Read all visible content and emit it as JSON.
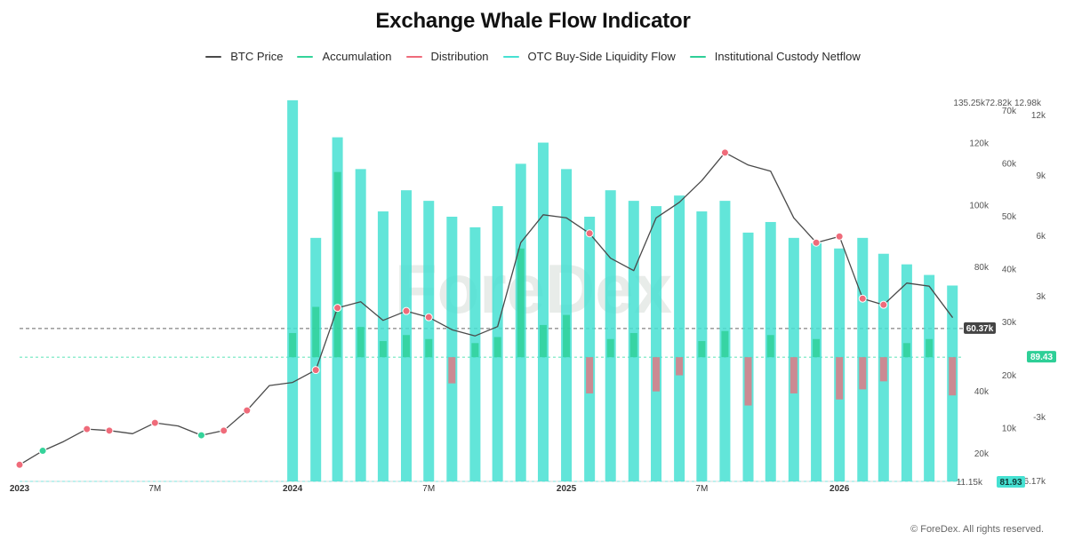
{
  "chart_data": {
    "type": "line",
    "title": "Exchange Whale Flow Indicator",
    "legend": [
      {
        "name": "BTC Price",
        "color": "#4a4a4a"
      },
      {
        "name": "Accumulation",
        "color": "#34d39a"
      },
      {
        "name": "Distribution",
        "color": "#ef6b7a"
      },
      {
        "name": "OTC Buy-Side Liquidity Flow",
        "color": "#46e1d2"
      },
      {
        "name": "Institutional Custody Netflow",
        "color": "#2ecf97"
      }
    ],
    "x": [
      "2023-01-01",
      "2023-02-01",
      "2023-03-01",
      "2023-04-01",
      "2023-05-01",
      "2023-06-01",
      "2023-07-01",
      "2023-08-01",
      "2023-09-01",
      "2023-10-01",
      "2023-11-01",
      "2023-12-01",
      "2024-01-01",
      "2024-02-01",
      "2024-03-01",
      "2024-04-01",
      "2024-05-01",
      "2024-06-01",
      "2024-07-01",
      "2024-08-01",
      "2024-09-01",
      "2024-10-01",
      "2024-11-01",
      "2024-12-01",
      "2025-01-01",
      "2025-02-01",
      "2025-03-01",
      "2025-04-01",
      "2025-05-01",
      "2025-06-01",
      "2025-07-01",
      "2025-08-01",
      "2025-09-01",
      "2025-10-01",
      "2025-11-01",
      "2025-12-01",
      "2026-01-01",
      "2026-02-01",
      "2026-03-01",
      "2026-04-01",
      "2026-05-01",
      "2026-06-01"
    ],
    "series": [
      {
        "name": "BTC Price",
        "values": [
          16500,
          21000,
          24000,
          28000,
          27500,
          26500,
          30000,
          29000,
          26000,
          27500,
          34000,
          42000,
          43000,
          47000,
          67000,
          69000,
          63000,
          66000,
          64000,
          60000,
          58000,
          61000,
          88000,
          97000,
          96000,
          91000,
          83000,
          79000,
          96000,
          101000,
          108000,
          117000,
          113000,
          111000,
          96000,
          88000,
          90000,
          70000,
          68000,
          75000,
          74000,
          64000
        ]
      },
      {
        "name": "Accumulation",
        "values": [
          0,
          1,
          0,
          0,
          0,
          0,
          0,
          0,
          1,
          0,
          0,
          0,
          0,
          0,
          0,
          0,
          0,
          0,
          0,
          0,
          0,
          0,
          0,
          0,
          0,
          0,
          0,
          0,
          0,
          0,
          0,
          0,
          0,
          0,
          0,
          0,
          0,
          0,
          0,
          0,
          0,
          0
        ]
      },
      {
        "name": "Distribution",
        "values": [
          1,
          0,
          0,
          1,
          1,
          0,
          1,
          0,
          0,
          1,
          1,
          0,
          0,
          1,
          1,
          0,
          0,
          1,
          1,
          0,
          0,
          0,
          0,
          0,
          0,
          1,
          0,
          0,
          0,
          0,
          0,
          1,
          0,
          0,
          0,
          1,
          1,
          1,
          1,
          0,
          0,
          0
        ]
      },
      {
        "name": "OTC Buy-Side Liquidity Flow",
        "values": [
          null,
          null,
          null,
          null,
          null,
          null,
          null,
          null,
          null,
          null,
          null,
          null,
          72000,
          46000,
          65000,
          59000,
          51000,
          55000,
          53000,
          50000,
          48000,
          52000,
          60000,
          64000,
          59000,
          50000,
          55000,
          53000,
          52000,
          54000,
          51000,
          53000,
          47000,
          49000,
          46000,
          45000,
          44000,
          46000,
          43000,
          41000,
          39000,
          37000
        ]
      },
      {
        "name": "Institutional Custody Netflow",
        "values": [
          null,
          null,
          null,
          null,
          null,
          null,
          null,
          null,
          null,
          null,
          null,
          null,
          1200,
          2500,
          9200,
          1500,
          800,
          1100,
          900,
          -1300,
          700,
          1000,
          5400,
          1600,
          2100,
          -1800,
          900,
          1200,
          -1700,
          -900,
          800,
          1300,
          -2400,
          1100,
          -1800,
          900,
          -2100,
          -1600,
          -1200,
          700,
          900,
          -1900
        ]
      }
    ],
    "axes": {
      "x_ticks": [
        {
          "date": "2023-01-01",
          "label": "2023"
        },
        {
          "date": "2023-07-01",
          "label": "7M"
        },
        {
          "date": "2024-01-01",
          "label": "2024"
        },
        {
          "date": "2024-07-01",
          "label": "7M"
        },
        {
          "date": "2025-01-01",
          "label": "2025"
        },
        {
          "date": "2025-07-01",
          "label": "7M"
        },
        {
          "date": "2026-01-01",
          "label": "2026"
        }
      ],
      "price_ticks": [
        {
          "value": 20000,
          "label": "20k"
        },
        {
          "value": 40000,
          "label": "40k"
        },
        {
          "value": 60000,
          "label": "60k"
        },
        {
          "value": 80000,
          "label": "80k"
        },
        {
          "value": 100000,
          "label": "100k"
        },
        {
          "value": 120000,
          "label": "120k"
        }
      ],
      "otc_ticks": [
        {
          "value": 10000,
          "label": "10k"
        },
        {
          "value": 20000,
          "label": "20k"
        },
        {
          "value": 30000,
          "label": "30k"
        },
        {
          "value": 40000,
          "label": "40k"
        },
        {
          "value": 50000,
          "label": "50k"
        },
        {
          "value": 60000,
          "label": "60k"
        },
        {
          "value": 70000,
          "label": "70k"
        }
      ],
      "netflow_ticks": [
        {
          "value": -6170,
          "label": "-6.17k"
        },
        {
          "value": -3000,
          "label": "-3k"
        },
        {
          "value": 0,
          "label": "0"
        },
        {
          "value": 3000,
          "label": "3k"
        },
        {
          "value": 6000,
          "label": "6k"
        },
        {
          "value": 9000,
          "label": "9k"
        },
        {
          "value": 12000,
          "label": "12k"
        }
      ],
      "price_ylim": [
        11150,
        135250
      ],
      "otc_ylim": [
        0,
        72820
      ],
      "netflow_ylim": [
        -6170,
        12980
      ],
      "scale_labels": [
        "135.25k",
        "72.82k",
        "12.98k",
        "11.15k"
      ],
      "badge_values": {
        "price": "60.37k",
        "netflow": "89.43",
        "otc": "81.93"
      }
    },
    "grid": false,
    "legend_position": "top-center",
    "watermark": "ForeDex"
  },
  "footer": {
    "copyright": "© ForeDex. All rights reserved."
  }
}
